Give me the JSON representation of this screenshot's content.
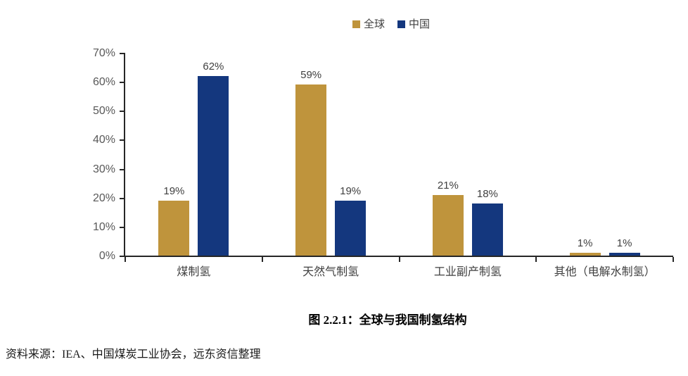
{
  "figure": {
    "caption": "图 2.2.1：全球与我国制氢结构",
    "source_note": "资料来源：IEA、中国煤炭工业协会，远东资信整理"
  },
  "chart_data": {
    "type": "bar",
    "title": "图 2.2.1：全球与我国制氢结构",
    "categories": [
      "煤制氢",
      "天然气制氢",
      "工业副产制氢",
      "其他（电解水制氢）"
    ],
    "series": [
      {
        "name": "全球",
        "color": "#BF943C",
        "values": [
          19,
          59,
          21,
          1
        ]
      },
      {
        "name": "中国",
        "color": "#14377E",
        "values": [
          62,
          19,
          18,
          1
        ]
      }
    ],
    "value_suffix": "%",
    "xlabel": "",
    "ylabel": "",
    "ylim": [
      0,
      70
    ],
    "ytick_step": 10,
    "ytick_labels": [
      "0%",
      "10%",
      "20%",
      "30%",
      "40%",
      "50%",
      "60%",
      "70%"
    ],
    "grid": false,
    "legend_position": "top-center",
    "colors": {
      "axis": "#262626",
      "data_label": "#404040",
      "tick_label": "#595959",
      "category_label": "#404040"
    }
  }
}
